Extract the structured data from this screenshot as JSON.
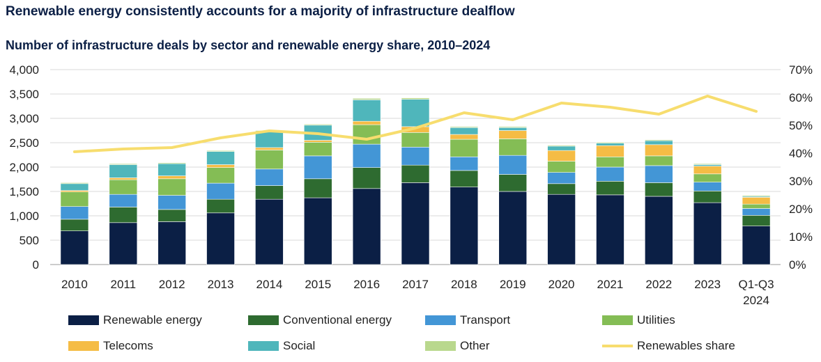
{
  "title": "Renewable energy consistently accounts for a majority of infrastructure dealflow",
  "subtitle": "Number of infrastructure deals by sector and renewable energy share, 2010–2024",
  "chart_data": {
    "type": "bar",
    "stacked": true,
    "categories": [
      "2010",
      "2011",
      "2012",
      "2013",
      "2014",
      "2015",
      "2016",
      "2017",
      "2018",
      "2019",
      "2020",
      "2021",
      "2022",
      "2023",
      "Q1-Q3 2024"
    ],
    "category_lines": [
      [
        "2010"
      ],
      [
        "2011"
      ],
      [
        "2012"
      ],
      [
        "2013"
      ],
      [
        "2014"
      ],
      [
        "2015"
      ],
      [
        "2016"
      ],
      [
        "2017"
      ],
      [
        "2018"
      ],
      [
        "2019"
      ],
      [
        "2020"
      ],
      [
        "2021"
      ],
      [
        "2022"
      ],
      [
        "2023"
      ],
      [
        "Q1-Q3",
        "2024"
      ]
    ],
    "series": [
      {
        "name": "Renewable energy",
        "color": "#0b1f45",
        "values": [
          690,
          860,
          880,
          1060,
          1340,
          1370,
          1560,
          1680,
          1590,
          1500,
          1440,
          1430,
          1400,
          1270,
          790
        ]
      },
      {
        "name": "Conventional energy",
        "color": "#2e6b30",
        "values": [
          240,
          320,
          250,
          280,
          280,
          390,
          430,
          360,
          340,
          350,
          220,
          280,
          280,
          240,
          220
        ]
      },
      {
        "name": "Transport",
        "color": "#4396d6",
        "values": [
          260,
          260,
          290,
          330,
          340,
          470,
          480,
          370,
          280,
          390,
          230,
          290,
          350,
          180,
          140
        ]
      },
      {
        "name": "Utilities",
        "color": "#84bd55",
        "values": [
          300,
          300,
          340,
          320,
          390,
          280,
          400,
          300,
          360,
          340,
          230,
          210,
          200,
          170,
          90
        ]
      },
      {
        "name": "Telecoms",
        "color": "#f5bc45",
        "values": [
          30,
          40,
          60,
          60,
          50,
          40,
          70,
          120,
          100,
          170,
          220,
          230,
          230,
          160,
          140
        ]
      },
      {
        "name": "Social",
        "color": "#4fb6bb",
        "values": [
          140,
          270,
          250,
          270,
          330,
          310,
          440,
          560,
          140,
          60,
          90,
          50,
          80,
          30,
          20
        ]
      },
      {
        "name": "Other",
        "color": "#b9d88d",
        "values": [
          20,
          20,
          20,
          20,
          20,
          20,
          30,
          30,
          20,
          20,
          20,
          20,
          20,
          20,
          20
        ]
      }
    ],
    "line_series": {
      "name": "Renewables share",
      "color": "#f7dd6e",
      "axis": "right",
      "values": [
        40.5,
        41.5,
        42,
        45.5,
        48,
        47,
        45,
        49,
        54.5,
        52,
        58,
        56.5,
        54,
        60.5,
        55
      ]
    },
    "y_left": {
      "min": 0,
      "max": 4000,
      "ticks": [
        0,
        500,
        1000,
        1500,
        2000,
        2500,
        3000,
        3500,
        4000
      ],
      "tick_labels": [
        "0",
        "500",
        "1,000",
        "1,500",
        "2,000",
        "2,500",
        "3,000",
        "3,500",
        "4,000"
      ]
    },
    "y_right": {
      "min": 0,
      "max": 70,
      "ticks": [
        0,
        10,
        20,
        30,
        40,
        50,
        60,
        70
      ],
      "tick_labels": [
        "0%",
        "10%",
        "20%",
        "30%",
        "40%",
        "50%",
        "60%",
        "70%"
      ]
    },
    "legend": [
      {
        "label": "Renewable energy",
        "kind": "box",
        "color": "#0b1f45"
      },
      {
        "label": "Conventional energy",
        "kind": "box",
        "color": "#2e6b30"
      },
      {
        "label": "Transport",
        "kind": "box",
        "color": "#4396d6"
      },
      {
        "label": "Utilities",
        "kind": "box",
        "color": "#84bd55"
      },
      {
        "label": "Telecoms",
        "kind": "box",
        "color": "#f5bc45"
      },
      {
        "label": "Social",
        "kind": "box",
        "color": "#4fb6bb"
      },
      {
        "label": "Other",
        "kind": "box",
        "color": "#b9d88d"
      },
      {
        "label": "Renewables share",
        "kind": "line",
        "color": "#f7dd6e"
      }
    ],
    "legend_position": "bottom"
  }
}
